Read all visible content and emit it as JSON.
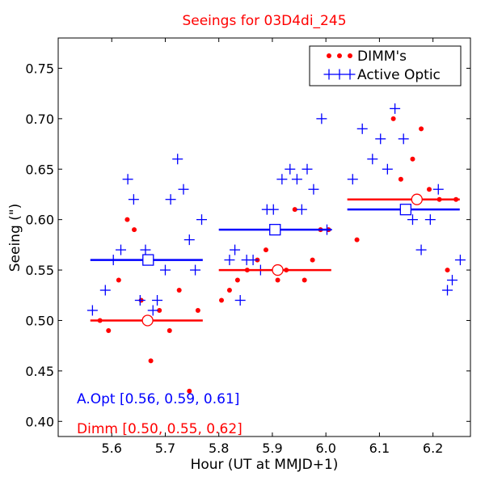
{
  "chart_data": {
    "type": "scatter",
    "title": "Seeings for 03D4di_245",
    "xlabel": "Hour (UT at MMJD+1)",
    "ylabel": "Seeing (\")",
    "xlim": [
      5.5,
      6.27
    ],
    "ylim": [
      0.385,
      0.78
    ],
    "xticks": [
      5.6,
      5.7,
      5.8,
      5.9,
      6.0,
      6.1,
      6.2
    ],
    "xtick_labels": [
      "5.6",
      "5.7",
      "5.8",
      "5.9",
      "6.0",
      "6.1",
      "6.2"
    ],
    "yticks": [
      0.4,
      0.45,
      0.5,
      0.55,
      0.6,
      0.65,
      0.7,
      0.75
    ],
    "ytick_labels": [
      "0.40",
      "0.45",
      "0.50",
      "0.55",
      "0.60",
      "0.65",
      "0.70",
      "0.75"
    ],
    "legend_position": "top-right",
    "series": [
      {
        "name": "DIMM's",
        "color": "#ff0000",
        "marker": "dot",
        "points": [
          [
            5.578,
            0.5
          ],
          [
            5.594,
            0.49
          ],
          [
            5.613,
            0.54
          ],
          [
            5.629,
            0.6
          ],
          [
            5.642,
            0.59
          ],
          [
            5.655,
            0.52
          ],
          [
            5.673,
            0.46
          ],
          [
            5.689,
            0.51
          ],
          [
            5.708,
            0.49
          ],
          [
            5.726,
            0.53
          ],
          [
            5.745,
            0.43
          ],
          [
            5.761,
            0.51
          ],
          [
            5.805,
            0.52
          ],
          [
            5.82,
            0.53
          ],
          [
            5.835,
            0.54
          ],
          [
            5.853,
            0.55
          ],
          [
            5.872,
            0.56
          ],
          [
            5.888,
            0.57
          ],
          [
            5.91,
            0.54
          ],
          [
            5.926,
            0.55
          ],
          [
            5.942,
            0.61
          ],
          [
            5.96,
            0.54
          ],
          [
            5.975,
            0.56
          ],
          [
            5.99,
            0.59
          ],
          [
            6.005,
            0.59
          ],
          [
            6.058,
            0.58
          ],
          [
            6.126,
            0.7
          ],
          [
            6.14,
            0.64
          ],
          [
            6.162,
            0.66
          ],
          [
            6.178,
            0.69
          ],
          [
            6.193,
            0.63
          ],
          [
            6.212,
            0.62
          ],
          [
            6.227,
            0.55
          ],
          [
            6.243,
            0.62
          ]
        ]
      },
      {
        "name": "Active Optic",
        "color": "#0000ff",
        "marker": "plus",
        "points": [
          [
            5.564,
            0.51
          ],
          [
            5.588,
            0.53
          ],
          [
            5.603,
            0.56
          ],
          [
            5.617,
            0.57
          ],
          [
            5.63,
            0.64
          ],
          [
            5.641,
            0.62
          ],
          [
            5.653,
            0.52
          ],
          [
            5.663,
            0.57
          ],
          [
            5.677,
            0.51
          ],
          [
            5.685,
            0.52
          ],
          [
            5.7,
            0.55
          ],
          [
            5.71,
            0.62
          ],
          [
            5.723,
            0.66
          ],
          [
            5.734,
            0.63
          ],
          [
            5.745,
            0.58
          ],
          [
            5.756,
            0.55
          ],
          [
            5.768,
            0.6
          ],
          [
            5.82,
            0.56
          ],
          [
            5.83,
            0.57
          ],
          [
            5.84,
            0.52
          ],
          [
            5.852,
            0.56
          ],
          [
            5.864,
            0.56
          ],
          [
            5.878,
            0.55
          ],
          [
            5.89,
            0.61
          ],
          [
            5.902,
            0.61
          ],
          [
            5.918,
            0.64
          ],
          [
            5.933,
            0.65
          ],
          [
            5.946,
            0.64
          ],
          [
            5.955,
            0.61
          ],
          [
            5.965,
            0.65
          ],
          [
            5.977,
            0.63
          ],
          [
            5.992,
            0.7
          ],
          [
            6.002,
            0.59
          ],
          [
            6.05,
            0.64
          ],
          [
            6.068,
            0.69
          ],
          [
            6.087,
            0.66
          ],
          [
            6.102,
            0.68
          ],
          [
            6.115,
            0.65
          ],
          [
            6.129,
            0.71
          ],
          [
            6.145,
            0.68
          ],
          [
            6.162,
            0.6
          ],
          [
            6.178,
            0.57
          ],
          [
            6.195,
            0.6
          ],
          [
            6.21,
            0.63
          ],
          [
            6.227,
            0.53
          ],
          [
            6.236,
            0.54
          ],
          [
            6.251,
            0.56
          ]
        ]
      }
    ],
    "median_lines": [
      {
        "series": "Active Optic",
        "x_start": 5.56,
        "x_end": 5.77,
        "y": 0.56,
        "x_marker": 5.668,
        "color": "#0000ff",
        "marker": "open-square"
      },
      {
        "series": "Active Optic",
        "x_start": 5.8,
        "x_end": 6.01,
        "y": 0.59,
        "x_marker": 5.905,
        "color": "#0000ff",
        "marker": "open-square"
      },
      {
        "series": "Active Optic",
        "x_start": 6.04,
        "x_end": 6.25,
        "y": 0.61,
        "x_marker": 6.149,
        "color": "#0000ff",
        "marker": "open-square"
      },
      {
        "series": "DIMM's",
        "x_start": 5.56,
        "x_end": 5.77,
        "y": 0.5,
        "x_marker": 5.667,
        "color": "#ff0000",
        "marker": "open-circle"
      },
      {
        "series": "DIMM's",
        "x_start": 5.8,
        "x_end": 6.01,
        "y": 0.55,
        "x_marker": 5.91,
        "color": "#ff0000",
        "marker": "open-circle"
      },
      {
        "series": "DIMM's",
        "x_start": 6.04,
        "x_end": 6.25,
        "y": 0.62,
        "x_marker": 6.17,
        "color": "#ff0000",
        "marker": "open-circle"
      }
    ],
    "annotations": [
      {
        "text": "A.Opt [0.56, 0.59, 0.61]",
        "color": "#0000ff"
      },
      {
        "text": "Dimm [0.50, 0.55, 0.62]",
        "color": "#ff0000"
      }
    ]
  }
}
